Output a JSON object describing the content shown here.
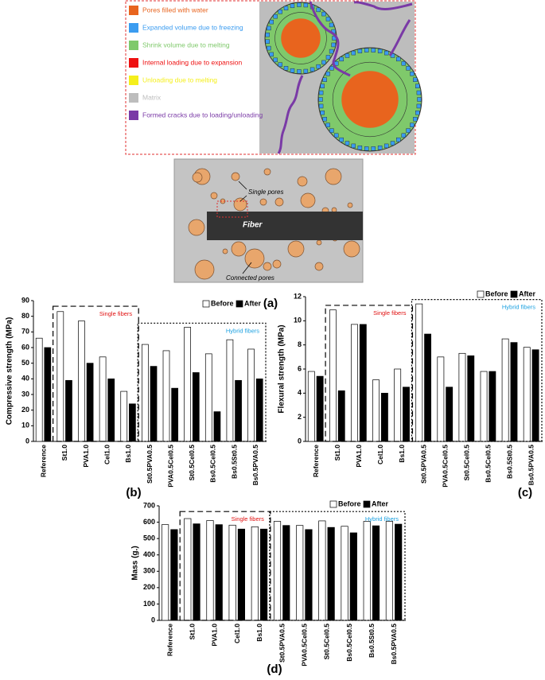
{
  "diagram": {
    "panel": "(a)",
    "legend": [
      {
        "label": "Pores filled with water",
        "color": "#e8641e"
      },
      {
        "label": "Expanded volume due to freezing",
        "color": "#3b9cf0"
      },
      {
        "label": "Shrink volume due to melting",
        "color": "#7fc96b"
      },
      {
        "label": "Internal loading due to expansion",
        "color": "#ee1111"
      },
      {
        "label": "Unloading due to melting",
        "color": "#f5ef1c"
      },
      {
        "label": "Matrix",
        "color": "#bdbdbd"
      },
      {
        "label": "Formed cracks due to loading/unloading",
        "color": "#7a3aa6"
      }
    ],
    "single_pores": "Single pores",
    "fiber": "Fiber",
    "connected_pores": "Connected pores"
  },
  "chart_data": [
    {
      "type": "bar",
      "panel": "(b)",
      "y_label": "Compressive strength (MPa)",
      "categories": [
        "Reference",
        "St1.0",
        "PVA1.0",
        "Cel1.0",
        "Bs1.0",
        "St0.5PVA0.5",
        "PVA0.5Cel0.5",
        "St0.5Cel0.5",
        "Bs0.5Cel0.5",
        "Bs0.5St0.5",
        "Bs0.5PVA0.5"
      ],
      "series": [
        {
          "name": "Before",
          "color": "#ffffff",
          "values": [
            66,
            83,
            77,
            54,
            32,
            62,
            58,
            73,
            56,
            65,
            59
          ]
        },
        {
          "name": "After",
          "color": "#000000",
          "values": [
            60,
            39,
            50,
            40,
            24,
            48,
            34,
            44,
            19,
            39,
            40
          ]
        }
      ],
      "ylim": [
        0,
        90
      ],
      "yticks": [
        0,
        10,
        20,
        30,
        40,
        50,
        60,
        70,
        80,
        90
      ],
      "annotations": [
        {
          "text": "Single fibers",
          "color": "#e01010"
        },
        {
          "text": "Hybrid fibers",
          "color": "#1aa0e0"
        }
      ]
    },
    {
      "type": "bar",
      "panel": "(c)",
      "y_label": "Flexural strength (MPa)",
      "categories": [
        "Reference",
        "St1.0",
        "PVA1.0",
        "Cel1.0",
        "Bs1.0",
        "St0.5PVA0.5",
        "PVA0.5Cel0.5",
        "St0.5Cel0.5",
        "Bs0.5Cel0.5",
        "Bs0.5St0.5",
        "Bs0.5PVA0.5"
      ],
      "series": [
        {
          "name": "Before",
          "color": "#ffffff",
          "values": [
            5.8,
            10.9,
            9.7,
            5.1,
            6.0,
            11.4,
            7.0,
            7.3,
            5.8,
            8.5,
            7.8
          ]
        },
        {
          "name": "After",
          "color": "#000000",
          "values": [
            5.4,
            4.2,
            9.7,
            4.0,
            4.5,
            8.9,
            4.5,
            7.1,
            5.8,
            8.2,
            7.6
          ]
        }
      ],
      "ylim": [
        0,
        12
      ],
      "yticks": [
        0,
        2,
        4,
        6,
        8,
        10,
        12
      ],
      "annotations": [
        {
          "text": "Single fibers",
          "color": "#e01010"
        },
        {
          "text": "Hybrid fibers",
          "color": "#1aa0e0"
        }
      ]
    },
    {
      "type": "bar",
      "panel": "(d)",
      "y_label": "Mass (g.)",
      "categories": [
        "Reference",
        "St1.0",
        "PVA1.0",
        "Cel1.0",
        "Bs1.0",
        "St0.5PVA0.5",
        "PVA0.5Cel0.5",
        "St0.5Cel0.5",
        "Bs0.5Cel0.5",
        "Bs0.5St0.5",
        "Bs0.5PVA0.5"
      ],
      "series": [
        {
          "name": "Before",
          "color": "#ffffff",
          "values": [
            585,
            622,
            610,
            582,
            572,
            605,
            580,
            608,
            575,
            605,
            605
          ]
        },
        {
          "name": "After",
          "color": "#000000",
          "values": [
            555,
            590,
            585,
            558,
            558,
            580,
            555,
            568,
            535,
            578,
            588
          ]
        }
      ],
      "ylim": [
        0,
        700
      ],
      "yticks": [
        0,
        100,
        200,
        300,
        400,
        500,
        600,
        700
      ],
      "annotations": [
        {
          "text": "Single fibers",
          "color": "#e01010"
        },
        {
          "text": "Hybrid fibers",
          "color": "#1aa0e0"
        }
      ]
    }
  ]
}
